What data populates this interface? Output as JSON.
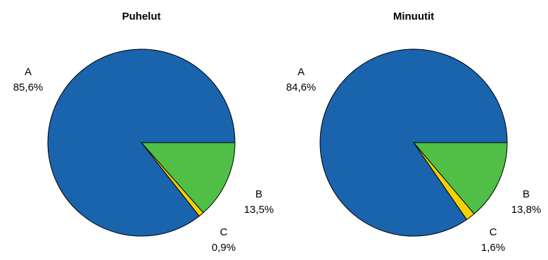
{
  "chart_data": [
    {
      "type": "pie",
      "title": "Puhelut",
      "slices": [
        {
          "label": "A",
          "value_text": "85,6%",
          "value": 85.6,
          "color": "#1a63ad"
        },
        {
          "label": "B",
          "value_text": "13,5%",
          "value": 13.5,
          "color": "#4fbf46"
        },
        {
          "label": "C",
          "value_text": "0,9%",
          "value": 0.9,
          "color": "#f5d100"
        }
      ]
    },
    {
      "type": "pie",
      "title": "Minuutit",
      "slices": [
        {
          "label": "A",
          "value_text": "84,6%",
          "value": 84.6,
          "color": "#1a63ad"
        },
        {
          "label": "B",
          "value_text": "13,8%",
          "value": 13.8,
          "color": "#4fbf46"
        },
        {
          "label": "C",
          "value_text": "1,6%",
          "value": 1.6,
          "color": "#f5d100"
        }
      ]
    }
  ]
}
